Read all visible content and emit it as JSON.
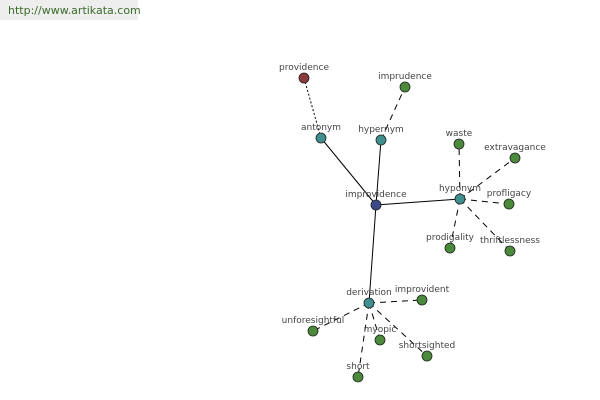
{
  "watermark": "http://www.artikata.com",
  "colors": {
    "root": "#3c4a8a",
    "relation": "#3f8f8f",
    "word": "#4a8a3a",
    "antonym_word": "#8b3a3a",
    "edge": "#000000"
  },
  "nodes": [
    {
      "id": "improvidence",
      "label": "improvidence",
      "kind": "root"
    },
    {
      "id": "antonym",
      "label": "antonym",
      "kind": "relation"
    },
    {
      "id": "hypernym",
      "label": "hypernym",
      "kind": "relation"
    },
    {
      "id": "hyponym",
      "label": "hyponym",
      "kind": "relation"
    },
    {
      "id": "derivation",
      "label": "derivation",
      "kind": "relation"
    },
    {
      "id": "providence",
      "label": "providence",
      "kind": "antonym_word"
    },
    {
      "id": "imprudence",
      "label": "imprudence",
      "kind": "word"
    },
    {
      "id": "waste",
      "label": "waste",
      "kind": "word"
    },
    {
      "id": "extravagance",
      "label": "extravagance",
      "kind": "word"
    },
    {
      "id": "profligacy",
      "label": "profligacy",
      "kind": "word"
    },
    {
      "id": "thriftlessness",
      "label": "thriftlessness",
      "kind": "word"
    },
    {
      "id": "prodigality",
      "label": "prodigality",
      "kind": "word"
    },
    {
      "id": "improvident",
      "label": "improvident",
      "kind": "word"
    },
    {
      "id": "unforesightful",
      "label": "unforesightful",
      "kind": "word"
    },
    {
      "id": "myopic",
      "label": "myopic",
      "kind": "word"
    },
    {
      "id": "shortsighted",
      "label": "shortsighted",
      "kind": "word"
    },
    {
      "id": "short",
      "label": "short",
      "kind": "word"
    }
  ],
  "edges": [
    {
      "from": "improvidence",
      "to": "antonym",
      "style": "solid"
    },
    {
      "from": "improvidence",
      "to": "hypernym",
      "style": "solid"
    },
    {
      "from": "improvidence",
      "to": "hyponym",
      "style": "solid"
    },
    {
      "from": "improvidence",
      "to": "derivation",
      "style": "solid"
    },
    {
      "from": "antonym",
      "to": "providence",
      "style": "dotted"
    },
    {
      "from": "hypernym",
      "to": "imprudence",
      "style": "dashed"
    },
    {
      "from": "hyponym",
      "to": "waste",
      "style": "dashed"
    },
    {
      "from": "hyponym",
      "to": "extravagance",
      "style": "dashed"
    },
    {
      "from": "hyponym",
      "to": "profligacy",
      "style": "dashed"
    },
    {
      "from": "hyponym",
      "to": "thriftlessness",
      "style": "dashed"
    },
    {
      "from": "hyponym",
      "to": "prodigality",
      "style": "dashed"
    },
    {
      "from": "derivation",
      "to": "improvident",
      "style": "dashed"
    },
    {
      "from": "derivation",
      "to": "unforesightful",
      "style": "dashed"
    },
    {
      "from": "derivation",
      "to": "myopic",
      "style": "dashed"
    },
    {
      "from": "derivation",
      "to": "shortsighted",
      "style": "dashed"
    },
    {
      "from": "derivation",
      "to": "short",
      "style": "dashed"
    }
  ]
}
